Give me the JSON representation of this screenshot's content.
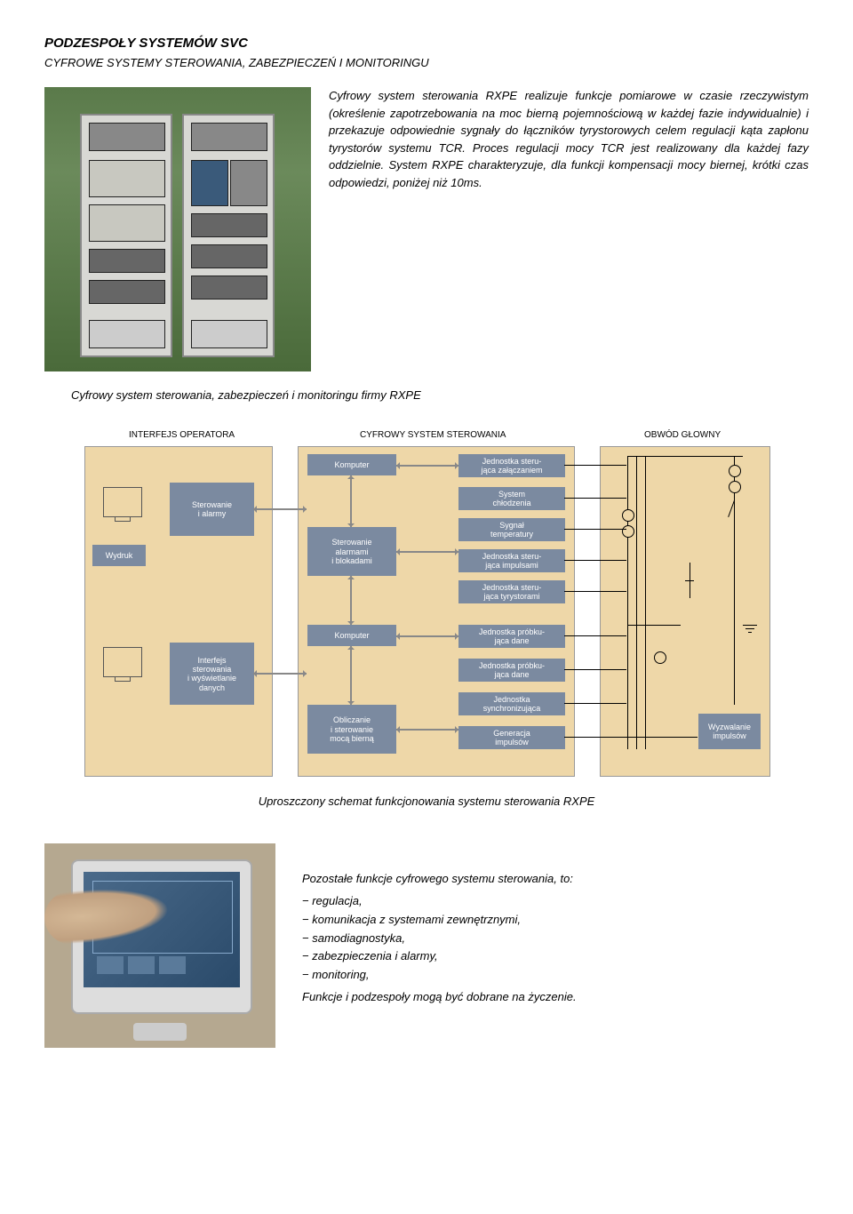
{
  "title": "PODZESPOŁY SYSTEMÓW SVC",
  "subtitle": "CYFROWE SYSTEMY STEROWANIA, ZABEZPIECZEŃ I MONITORINGU",
  "description": "Cyfrowy system sterowania RXPE realizuje funkcje pomiarowe w czasie rzeczywistym (określenie zapotrzebowania na moc bierną pojemnościową w każdej fazie indywidualnie) i przekazuje odpowiednie sygnały do łączników tyrystorowych celem regulacji kąta zapłonu tyrystorów systemu TCR. Proces regulacji mocy TCR jest realizowany dla każdej fazy oddzielnie. System RXPE charakteryzuje, dla funkcji kompensacji mocy biernej, krótki czas odpowiedzi, poniżej niż 10ms.",
  "caption1": "Cyfrowy system sterowania, zabezpieczeń i monitoringu firmy RXPE",
  "diagram": {
    "col_titles": {
      "left": "INTERFEJS OPERATORA",
      "mid": "CYFROWY SYSTEM STEROWANIA",
      "right": "OBWÓD GŁOWNY"
    },
    "left_panel": {
      "wydruk": "Wydruk",
      "sterowanie_alarmy": "Sterowanie\ni alarmy",
      "interfejs": "Interfejs\nsterowania\ni wyświetlanie\ndanych"
    },
    "mid_panel": {
      "komputer1": "Komputer",
      "ster_alarm_blok": "Sterowanie\nalarmami\ni blokadami",
      "komputer2": "Komputer",
      "oblicz": "Obliczanie\ni sterowanie\nmocą bierną",
      "jed_zal": "Jednostka steru-\njąca załączaniem",
      "sys_chl": "System\nchłodzenia",
      "syg_temp": "Sygnał\ntemperatury",
      "jed_imp": "Jednostka steru-\njąca impulsami",
      "jed_tyr": "Jednostka steru-\njąca tyrystorami",
      "jed_prob1": "Jednostka próbku-\njąca dane",
      "jed_prob2": "Jednostka próbku-\njąca dane",
      "jed_sync": "Jednostka\nsynchronizująca",
      "gen_imp": "Generacja\nimpulsów"
    },
    "right_panel": {
      "wyzw": "Wyzwalanie\nimpulsów"
    }
  },
  "diagram_caption": "Uproszczony schemat funkcjonowania systemu sterowania RXPE",
  "functions": {
    "intro": "Pozostałe funkcje cyfrowego systemu sterowania, to:",
    "items": [
      "regulacja,",
      "komunikacja z systemami zewnętrznymi,",
      "samodiagnostyka,",
      "zabezpieczenia i alarmy,",
      "monitoring,"
    ],
    "outro": "Funkcje i podzespoły mogą być dobrane na życzenie."
  },
  "colors": {
    "panel_bg": "#eed7a8",
    "box_bg": "#7b8aa0",
    "box_fg": "#ffffff",
    "wire": "#000000",
    "arrow": "#888888"
  }
}
